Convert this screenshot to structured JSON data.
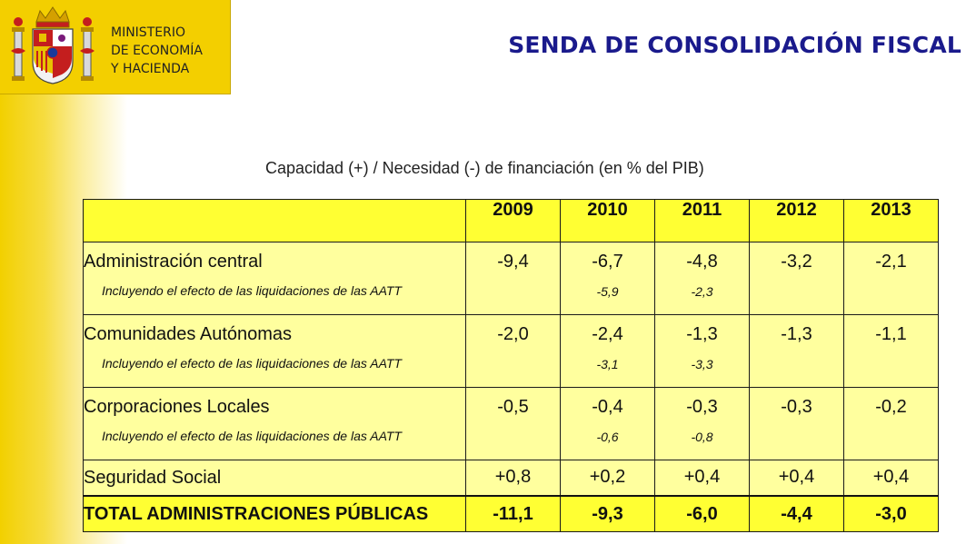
{
  "header": {
    "ministry_lines": [
      "MINISTERIO",
      "DE ECONOMÍA",
      "Y HACIENDA"
    ],
    "title": "SENDA DE CONSOLIDACIÓN FISCAL"
  },
  "subtitle": "Capacidad (+) / Necesidad (-) de financiación (en % del PIB)",
  "table": {
    "years": [
      "2009",
      "2010",
      "2011",
      "2012",
      "2013"
    ],
    "note_label": "Incluyendo el efecto de las liquidaciones de las AATT",
    "rows": [
      {
        "label": "Administración central",
        "values": [
          "-9,4",
          "-6,7",
          "-4,8",
          "-3,2",
          "-2,1"
        ],
        "notes": [
          "",
          "-5,9",
          "-2,3",
          "",
          ""
        ]
      },
      {
        "label": "Comunidades Autónomas",
        "values": [
          "-2,0",
          "-2,4",
          "-1,3",
          "-1,3",
          "-1,1"
        ],
        "notes": [
          "",
          "-3,1",
          "-3,3",
          "",
          ""
        ]
      },
      {
        "label": "Corporaciones Locales",
        "values": [
          "-0,5",
          "-0,4",
          "-0,3",
          "-0,3",
          "-0,2"
        ],
        "notes": [
          "",
          "-0,6",
          "-0,8",
          "",
          ""
        ]
      },
      {
        "label": "Seguridad Social",
        "values": [
          "+0,8",
          "+0,2",
          "+0,4",
          "+0,4",
          "+0,4"
        ]
      }
    ],
    "total": {
      "label": "TOTAL ADMINISTRACIONES PÚBLICAS",
      "values": [
        "-11,1",
        "-9,3",
        "-6,0",
        "-4,4",
        "-3,0"
      ]
    }
  }
}
